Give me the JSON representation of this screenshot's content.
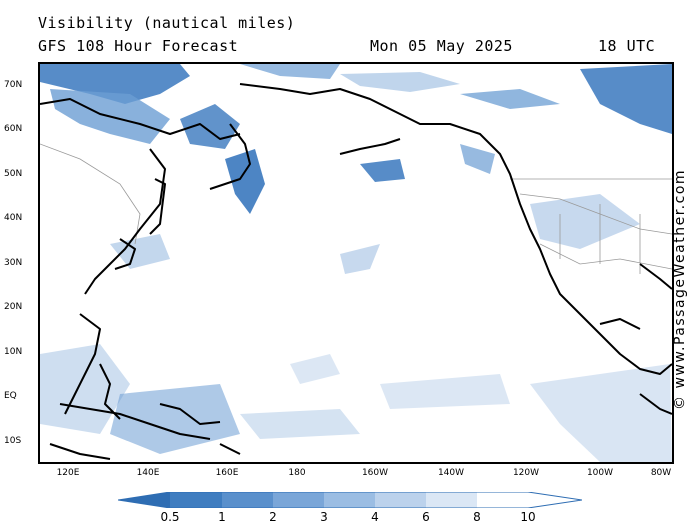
{
  "header": {
    "title": "Visibility (nautical miles)",
    "model": "GFS 108 Hour Forecast",
    "date": "Mon 05 May 2025",
    "time": "18 UTC"
  },
  "axes": {
    "lat_labels": [
      "70N",
      "60N",
      "50N",
      "40N",
      "30N",
      "20N",
      "10N",
      "EQ",
      "10S"
    ],
    "lon_labels": [
      "120E",
      "140E",
      "160E",
      "180",
      "160W",
      "140W",
      "120W",
      "100W",
      "80W"
    ]
  },
  "credit": "© www.PassageWeather.com",
  "legend": {
    "ticks": [
      "0.5",
      "1",
      "2",
      "3",
      "4",
      "6",
      "8",
      "10"
    ],
    "colors": [
      "#2e6db3",
      "#3f7dc0",
      "#5a90cc",
      "#7aa6d8",
      "#9bbde3",
      "#bcd2ec",
      "#dbe7f5",
      "#ffffff"
    ]
  },
  "colors": {
    "dense": "#3a78be",
    "medium": "#6b9dd3",
    "light": "#b9d0ea",
    "land_border": "#9a9a9a",
    "coast": "#000000"
  }
}
